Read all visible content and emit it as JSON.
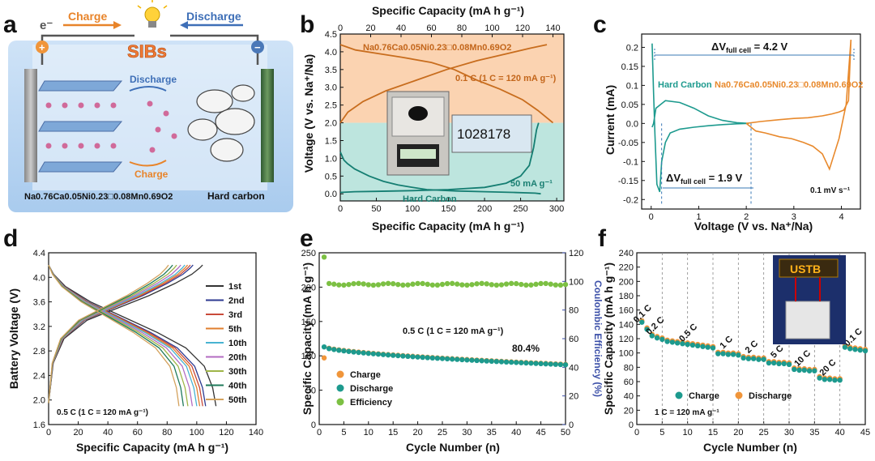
{
  "panel_a": {
    "letter": "a",
    "electron": "e⁻",
    "charge_label": "Charge",
    "discharge_label": "Discharge",
    "title": "SIBs",
    "plus": "+",
    "minus": "−",
    "inner_discharge": "Discharge",
    "inner_charge": "Charge",
    "cathode_label": "Na0.76Ca0.05Ni0.23□0.08Mn0.69O2",
    "anode_label": "Hard carbon",
    "colors": {
      "charge": "#e8842a",
      "discharge": "#3e6fb7",
      "title": "#f07a35",
      "ball": "#d06a9a"
    }
  },
  "chart_data": [
    {
      "panel": "b",
      "type": "line",
      "title": "",
      "xlabel": "Specific Capacity (mA h g⁻¹)",
      "x2label": "Specific Capacity (mA h g⁻¹)",
      "ylabel": "Voltage (V vs. Na⁺/Na)",
      "xlim": [
        0,
        310
      ],
      "x2lim": [
        0,
        147.2
      ],
      "ylim": [
        -0.2,
        4.5
      ],
      "xticks": [
        0,
        50,
        100,
        150,
        200,
        250,
        300
      ],
      "x2ticks": [
        0,
        20,
        40,
        60,
        80,
        100,
        120,
        140
      ],
      "yticks": [
        0.0,
        0.5,
        1.0,
        1.5,
        2.0,
        2.5,
        3.0,
        3.5,
        4.0,
        4.5
      ],
      "labels": {
        "cathode": "Na0.76Ca0.05Ni0.23□0.08Mn0.69O2",
        "rate_top": "0.1 C (1 C = 120 mA g⁻¹)",
        "rate_bottom": "50 mA g⁻¹",
        "anode": "Hard Carbon",
        "balance_reading": "1028178"
      },
      "series": [
        {
          "name": "cathode charge",
          "axis": "top",
          "x": [
            0,
            5,
            15,
            30,
            50,
            70,
            90,
            110,
            125,
            136
          ],
          "y": [
            2.0,
            2.3,
            2.6,
            2.9,
            3.2,
            3.5,
            3.75,
            3.95,
            4.1,
            4.2
          ]
        },
        {
          "name": "cathode discharge",
          "axis": "top",
          "x": [
            0,
            10,
            25,
            40,
            60,
            75,
            90,
            105,
            120,
            130,
            140
          ],
          "y": [
            4.2,
            4.05,
            3.95,
            3.85,
            3.7,
            3.5,
            3.2,
            2.95,
            2.65,
            2.35,
            2.0
          ]
        },
        {
          "name": "hard carbon discharge",
          "axis": "bottom",
          "x": [
            0,
            5,
            10,
            20,
            40,
            60,
            80,
            100,
            120,
            140,
            160,
            200,
            240,
            270,
            278
          ],
          "y": [
            1.18,
            0.95,
            0.85,
            0.7,
            0.5,
            0.35,
            0.25,
            0.18,
            0.12,
            0.1,
            0.08,
            0.06,
            0.04,
            0.02,
            0.0
          ]
        },
        {
          "name": "hard carbon charge",
          "axis": "bottom",
          "x": [
            0,
            20,
            50,
            100,
            150,
            200,
            230,
            250,
            262,
            268,
            272,
            275
          ],
          "y": [
            0.04,
            0.06,
            0.07,
            0.09,
            0.12,
            0.18,
            0.3,
            0.5,
            0.8,
            1.3,
            1.8,
            2.0
          ]
        }
      ]
    },
    {
      "panel": "c",
      "type": "line",
      "xlabel": "Voltage (V vs. Na⁺/Na)",
      "ylabel": "Current (mA)",
      "xlim": [
        -0.2,
        4.4
      ],
      "ylim": [
        -0.225,
        0.235
      ],
      "xticks": [
        0,
        1,
        2,
        3,
        4
      ],
      "yticks": [
        -0.2,
        -0.15,
        -0.1,
        -0.05,
        0.0,
        0.05,
        0.1,
        0.15,
        0.2
      ],
      "labels": {
        "delta_top": "ΔV",
        "delta_top_sub": "full cell",
        "delta_top_val": " = 4.2 V",
        "delta_bottom": "ΔV",
        "delta_bottom_sub": "full cell",
        "delta_bottom_val": " = 1.9 V",
        "anode": "Hard Carbon",
        "cathode": "Na0.76Ca0.05Ni0.23□0.08Mn0.69O2",
        "scan_rate": "0.1 mV s⁻¹"
      },
      "series": [
        {
          "name": "hard carbon",
          "color": "#1d9a8e",
          "x": [
            0.02,
            0.05,
            0.1,
            0.3,
            0.6,
            0.9,
            1.2,
            1.5,
            1.8,
            2.05,
            1.8,
            1.5,
            1.2,
            0.9,
            0.6,
            0.4,
            0.3,
            0.22,
            0.18,
            0.12,
            0.08,
            0.05,
            0.02
          ],
          "y": [
            -0.01,
            0.0,
            0.04,
            0.06,
            0.055,
            0.04,
            0.02,
            0.008,
            0.002,
            0.0,
            -0.001,
            -0.003,
            -0.006,
            -0.01,
            -0.015,
            -0.025,
            -0.05,
            -0.1,
            -0.18,
            -0.16,
            -0.03,
            0.08,
            0.21
          ]
        },
        {
          "name": "cathode",
          "color": "#e8892c",
          "x": [
            2.0,
            2.3,
            2.7,
            3.0,
            3.3,
            3.6,
            3.8,
            3.95,
            4.05,
            4.15,
            4.2,
            4.1,
            3.95,
            3.75,
            3.6,
            3.4,
            3.2,
            2.95,
            2.7,
            2.4,
            2.2,
            2.0
          ],
          "y": [
            0.0,
            0.005,
            0.01,
            0.013,
            0.015,
            0.02,
            0.025,
            0.03,
            0.035,
            0.06,
            0.22,
            0.05,
            -0.04,
            -0.12,
            -0.08,
            -0.06,
            -0.05,
            -0.04,
            -0.035,
            -0.025,
            -0.02,
            0.0
          ]
        }
      ]
    },
    {
      "panel": "d",
      "type": "line",
      "xlabel": "Specific Capacity (mA h g⁻¹)",
      "ylabel": "Battery Voltage (V)",
      "xlim": [
        0,
        140
      ],
      "ylim": [
        1.6,
        4.4
      ],
      "xticks": [
        0,
        20,
        40,
        60,
        80,
        100,
        120,
        140
      ],
      "yticks": [
        1.6,
        2.0,
        2.4,
        2.8,
        3.2,
        3.6,
        4.0,
        4.4
      ],
      "note": "0.5 C (1 C = 120 mA g⁻¹)",
      "cycles": [
        {
          "name": "1st",
          "color": "#333333",
          "capacity": 113
        },
        {
          "name": "2nd",
          "color": "#2d3a91",
          "capacity": 106
        },
        {
          "name": "3rd",
          "color": "#c94a3a",
          "capacity": 104
        },
        {
          "name": "5th",
          "color": "#e07f2e",
          "capacity": 102
        },
        {
          "name": "10th",
          "color": "#48b3d1",
          "capacity": 100
        },
        {
          "name": "20th",
          "color": "#b36bc2",
          "capacity": 97
        },
        {
          "name": "30th",
          "color": "#9fb548",
          "capacity": 94
        },
        {
          "name": "40th",
          "color": "#1f7a5b",
          "capacity": 91
        },
        {
          "name": "50th",
          "color": "#d4a25d",
          "capacity": 88
        }
      ]
    },
    {
      "panel": "e",
      "type": "scatter",
      "xlabel": "Cycle Number (n)",
      "ylabel": "Specific Capacity (mA h g⁻¹)",
      "y2label": "Coulombic Efficiency (%)",
      "xlim": [
        0,
        50
      ],
      "ylim": [
        0,
        250
      ],
      "y2lim": [
        0,
        120
      ],
      "xticks": [
        0,
        5,
        10,
        15,
        20,
        25,
        30,
        35,
        40,
        45,
        50
      ],
      "yticks": [
        0,
        50,
        100,
        150,
        200,
        250
      ],
      "y2ticks": [
        0,
        20,
        40,
        60,
        80,
        100,
        120
      ],
      "note": "0.5 C (1 C = 120 mA  g⁻¹)",
      "retention": "80.4%",
      "legend": [
        "Charge",
        "Discharge",
        "Efficiency"
      ],
      "colors": {
        "charge": "#f0953a",
        "discharge": "#1d9a8e",
        "efficiency": "#7cc043"
      },
      "charge_start": 97,
      "discharge_start": 113,
      "discharge_end": 87,
      "efficiency_first": 117,
      "efficiency_rest": 98
    },
    {
      "panel": "f",
      "type": "scatter",
      "xlabel": "Cycle Number (n)",
      "ylabel": "Specific Capacity (mA h g⁻¹)",
      "xlim": [
        0,
        45
      ],
      "ylim": [
        0,
        240
      ],
      "xticks": [
        0,
        5,
        10,
        15,
        20,
        25,
        30,
        35,
        40,
        45
      ],
      "yticks": [
        0,
        20,
        40,
        60,
        80,
        100,
        120,
        140,
        160,
        180,
        200,
        220,
        240
      ],
      "note": "1 C = 120 mA g⁻¹",
      "legend": [
        "Charge",
        "Discharge"
      ],
      "photo_label": "USTB",
      "colors": {
        "charge": "#1d9a8e",
        "discharge": "#f0953a"
      },
      "segments": [
        {
          "rate": "0.1 C",
          "start": 1,
          "end": 2,
          "values": [
            143,
            133
          ]
        },
        {
          "rate": "0.2 C",
          "start": 3,
          "end": 5,
          "values": [
            124,
            121,
            119
          ]
        },
        {
          "rate": "0.5 C",
          "start": 6,
          "end": 15,
          "values": [
            116,
            115,
            114,
            113,
            112,
            111,
            110,
            109,
            108,
            107
          ]
        },
        {
          "rate": "1 C",
          "start": 16,
          "end": 20,
          "values": [
            99,
            99,
            98,
            98,
            97
          ]
        },
        {
          "rate": "2 C",
          "start": 21,
          "end": 25,
          "values": [
            93,
            92,
            92,
            91,
            91
          ]
        },
        {
          "rate": "5 C",
          "start": 26,
          "end": 30,
          "values": [
            86,
            86,
            85,
            85,
            84
          ]
        },
        {
          "rate": "10 C",
          "start": 31,
          "end": 35,
          "values": [
            77,
            76,
            76,
            75,
            75
          ]
        },
        {
          "rate": "20 C",
          "start": 36,
          "end": 40,
          "values": [
            65,
            63,
            63,
            62,
            62
          ]
        },
        {
          "rate": "0.1 C",
          "start": 41,
          "end": 45,
          "values": [
            108,
            106,
            105,
            104,
            103
          ]
        }
      ]
    }
  ]
}
